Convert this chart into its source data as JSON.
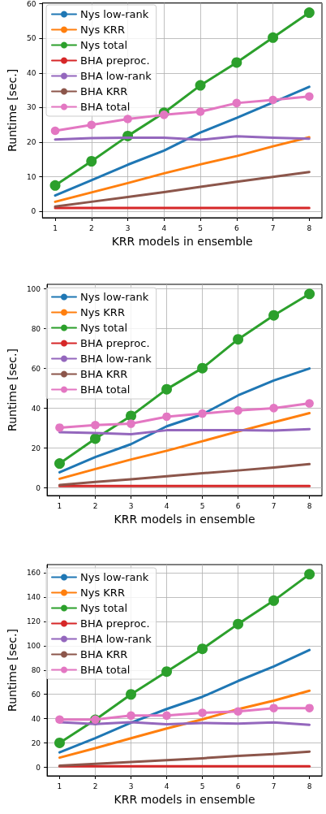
{
  "chart_data": [
    {
      "type": "line",
      "xlabel": "KRR models in ensemble",
      "ylabel": "Runtime [sec.]",
      "x": [
        1,
        2,
        3,
        4,
        5,
        6,
        7,
        8
      ],
      "xlim": [
        0.65,
        8.35
      ],
      "xticks": [
        1,
        2,
        3,
        4,
        5,
        6,
        7,
        8
      ],
      "ylim": [
        -1.8,
        60.2
      ],
      "yticks": [
        0,
        10,
        20,
        30,
        40,
        50,
        60
      ],
      "grid": true,
      "legend": "top left",
      "series": [
        {
          "name": "Nys low-rank",
          "color": "#1f77b4",
          "marker": "none",
          "values": [
            4.6,
            9,
            13.5,
            17.6,
            22.8,
            27,
            31.5,
            36
          ]
        },
        {
          "name": "Nys KRR",
          "color": "#ff7f0e",
          "marker": "none",
          "values": [
            2.8,
            5.5,
            8.2,
            11,
            13.6,
            16,
            18.8,
            21.4
          ]
        },
        {
          "name": "Nys total",
          "color": "#2ca02c",
          "marker": "circle",
          "values": [
            7.5,
            14.5,
            21.8,
            28.5,
            36.4,
            43,
            50.2,
            57.4
          ]
        },
        {
          "name": "BHA preproc.",
          "color": "#d62728",
          "marker": "none",
          "values": [
            1,
            1,
            1,
            1,
            1,
            1,
            1,
            1
          ]
        },
        {
          "name": "BHA low-rank",
          "color": "#9467bd",
          "marker": "none",
          "values": [
            20.8,
            21.2,
            21.3,
            21.3,
            20.7,
            21.7,
            21.3,
            21
          ]
        },
        {
          "name": "BHA KRR",
          "color": "#8c564b",
          "marker": "none",
          "values": [
            1.4,
            2.8,
            4.2,
            5.6,
            7.1,
            8.6,
            10,
            11.4
          ]
        },
        {
          "name": "BHA total",
          "color": "#e377c2",
          "marker": "circle",
          "values": [
            23.3,
            25,
            26.7,
            27.9,
            28.8,
            31.3,
            32.2,
            33.2
          ]
        }
      ]
    },
    {
      "type": "line",
      "xlabel": "KRR models in ensemble",
      "ylabel": "Runtime [sec.]",
      "x": [
        1,
        2,
        3,
        4,
        5,
        6,
        7,
        8
      ],
      "xlim": [
        0.65,
        8.35
      ],
      "xticks": [
        1,
        2,
        3,
        4,
        5,
        6,
        7,
        8
      ],
      "ylim": [
        -3.8,
        102.3
      ],
      "yticks": [
        0,
        20,
        40,
        60,
        80,
        100
      ],
      "grid": true,
      "legend": "top left",
      "series": [
        {
          "name": "Nys low-rank",
          "color": "#1f77b4",
          "marker": "none",
          "values": [
            7.9,
            15.5,
            22,
            31,
            37,
            46.5,
            54,
            60
          ]
        },
        {
          "name": "Nys KRR",
          "color": "#ff7f0e",
          "marker": "none",
          "values": [
            4.6,
            9.5,
            14.3,
            18.7,
            23.5,
            28.4,
            33,
            37.6
          ]
        },
        {
          "name": "Nys total",
          "color": "#2ca02c",
          "marker": "circle",
          "values": [
            12.3,
            24.8,
            36.2,
            49.6,
            60.2,
            74.7,
            86.7,
            97.5
          ]
        },
        {
          "name": "BHA preproc.",
          "color": "#d62728",
          "marker": "none",
          "values": [
            1,
            1,
            1,
            1,
            1,
            1,
            1,
            1
          ]
        },
        {
          "name": "BHA low-rank",
          "color": "#9467bd",
          "marker": "none",
          "values": [
            28,
            27.6,
            27,
            29,
            29,
            29,
            28.8,
            29.6
          ]
        },
        {
          "name": "BHA KRR",
          "color": "#8c564b",
          "marker": "none",
          "values": [
            1.5,
            3,
            4.4,
            5.9,
            7.4,
            8.8,
            10.3,
            12
          ]
        },
        {
          "name": "BHA total",
          "color": "#e377c2",
          "marker": "circle",
          "values": [
            30.3,
            31.6,
            32.3,
            35.8,
            37.4,
            38.9,
            40.1,
            42.5
          ]
        }
      ]
    },
    {
      "type": "line",
      "xlabel": "KRR models in ensemble",
      "ylabel": "Runtime [sec.]",
      "x": [
        1,
        2,
        3,
        4,
        5,
        6,
        7,
        8
      ],
      "xlim": [
        0.65,
        8.35
      ],
      "xticks": [
        1,
        2,
        3,
        4,
        5,
        6,
        7,
        8
      ],
      "ylim": [
        -6.9,
        166.6
      ],
      "yticks": [
        0,
        20,
        40,
        60,
        80,
        100,
        120,
        140,
        160
      ],
      "grid": true,
      "legend": "top left",
      "series": [
        {
          "name": "Nys low-rank",
          "color": "#1f77b4",
          "marker": "none",
          "values": [
            12.4,
            24,
            36.7,
            48,
            58,
            71,
            83,
            96.5
          ]
        },
        {
          "name": "Nys KRR",
          "color": "#ff7f0e",
          "marker": "none",
          "values": [
            8,
            15.8,
            24,
            32,
            39.5,
            47.8,
            54.8,
            63
          ]
        },
        {
          "name": "Nys total",
          "color": "#2ca02c",
          "marker": "circle",
          "values": [
            20.2,
            39.1,
            60,
            78.7,
            97.4,
            117.8,
            137,
            158.7
          ]
        },
        {
          "name": "BHA preproc.",
          "color": "#d62728",
          "marker": "none",
          "values": [
            1,
            1,
            1,
            1,
            1,
            1,
            1,
            1
          ]
        },
        {
          "name": "BHA low-rank",
          "color": "#9467bd",
          "marker": "none",
          "values": [
            37.2,
            35.7,
            37.2,
            35.5,
            36.5,
            35.9,
            37,
            35
          ]
        },
        {
          "name": "BHA KRR",
          "color": "#8c564b",
          "marker": "none",
          "values": [
            1.5,
            3,
            4.5,
            6,
            7.5,
            9.5,
            11,
            13
          ]
        },
        {
          "name": "BHA total",
          "color": "#e377c2",
          "marker": "circle",
          "values": [
            39.3,
            39.3,
            42.6,
            42.6,
            44.8,
            46,
            48.7,
            48.7
          ]
        }
      ]
    }
  ]
}
